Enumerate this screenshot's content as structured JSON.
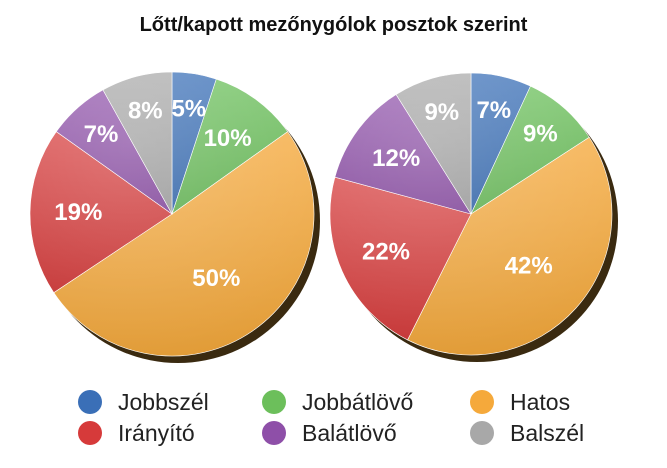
{
  "chart_data": {
    "type": "pie",
    "title": "Lőtt/kapott mezőnygólok posztok szerint",
    "categories": [
      "Jobbszél",
      "Jobbátlövő",
      "Hatos",
      "Irányító",
      "Balátlövő",
      "Balszél"
    ],
    "colors": [
      "#3a6fb7",
      "#6cbf5b",
      "#f5a93b",
      "#d63a3a",
      "#8e4fa8",
      "#a8a8a8"
    ],
    "series": [
      {
        "values": [
          5,
          10,
          50,
          19,
          7,
          8
        ],
        "labels": [
          "5%",
          "10%",
          "50%",
          "19%",
          "7%",
          "8%"
        ]
      },
      {
        "values": [
          7,
          9,
          42,
          22,
          12,
          9
        ],
        "labels": [
          "7%",
          "9%",
          "42%",
          "22%",
          "12%",
          "9%"
        ]
      }
    ],
    "legend_position": "bottom"
  }
}
